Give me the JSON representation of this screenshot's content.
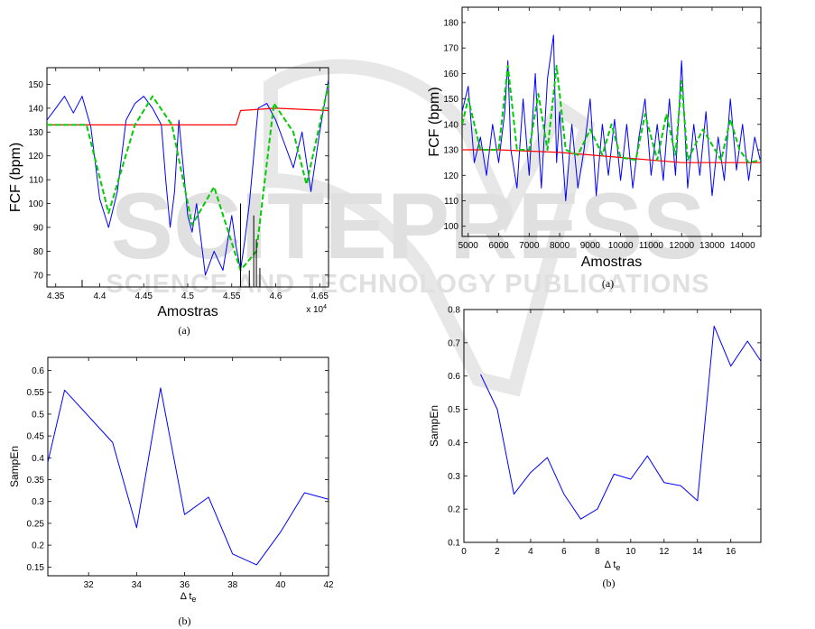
{
  "watermark": {
    "main": "SCITEPRESS",
    "sub": "SCIENCE AND TECHNOLOGY PUBLICATIONS"
  },
  "chart_data": [
    {
      "id": "top-left",
      "type": "line",
      "caption": "(a)",
      "xlabel": "Amostras",
      "ylabel": "FCF (bpm)",
      "x_exponent": "x 10",
      "x_exponent_power": "4",
      "xlim": [
        43.4,
        46.6
      ],
      "ylim": [
        65,
        157
      ],
      "xticks": [
        43.5,
        44,
        44.5,
        45,
        45.5,
        46,
        46.5
      ],
      "xtick_labels": [
        "4.35",
        "4.4",
        "4.45",
        "4.5",
        "4.55",
        "4.6",
        "4.65"
      ],
      "yticks": [
        70,
        80,
        90,
        100,
        110,
        120,
        130,
        140,
        150
      ],
      "ytick_labels": [
        "70",
        "80",
        "90",
        "100",
        "110",
        "120",
        "130",
        "140",
        "150"
      ],
      "colors": {
        "raw": "#0000ff",
        "baseline": "#ff0000",
        "trend": "#00cc00",
        "events": "#000000"
      },
      "series": [
        {
          "kind": "baseline",
          "x": [
            43.4,
            44.5,
            45.5,
            45.55,
            45.6,
            46.0,
            46.6
          ],
          "values": [
            133,
            133,
            133,
            133,
            139,
            140,
            139
          ]
        },
        {
          "kind": "trend",
          "x": [
            43.4,
            43.85,
            44.1,
            44.4,
            44.6,
            44.82,
            45.05,
            45.3,
            45.6,
            45.78,
            45.98,
            46.2,
            46.35,
            46.6
          ],
          "values": [
            133,
            133,
            96,
            133,
            145,
            133,
            91,
            107,
            72,
            80,
            142,
            130,
            108,
            150
          ]
        },
        {
          "kind": "raw",
          "x": [
            43.4,
            43.5,
            43.6,
            43.7,
            43.8,
            43.9,
            44.0,
            44.05,
            44.1,
            44.2,
            44.3,
            44.4,
            44.5,
            44.6,
            44.7,
            44.75,
            44.8,
            44.85,
            44.9,
            45.0,
            45.05,
            45.1,
            45.2,
            45.3,
            45.4,
            45.5,
            45.55,
            45.6,
            45.65,
            45.7,
            45.8,
            45.9,
            46.0,
            46.1,
            46.2,
            46.3,
            46.4,
            46.5,
            46.6
          ],
          "values": [
            135,
            140,
            145,
            138,
            145,
            132,
            102,
            96,
            90,
            105,
            135,
            142,
            145,
            140,
            133,
            110,
            90,
            105,
            135,
            95,
            88,
            100,
            70,
            80,
            72,
            95,
            82,
            72,
            85,
            100,
            140,
            142,
            135,
            125,
            115,
            130,
            105,
            130,
            152
          ]
        },
        {
          "kind": "events",
          "x": [
            43.8,
            45.6,
            45.7,
            45.75,
            45.78,
            45.82
          ],
          "values": [
            68,
            100,
            72,
            95,
            85,
            73
          ]
        }
      ]
    },
    {
      "id": "top-right",
      "type": "line",
      "caption": "(a)",
      "xlabel": "Amostras",
      "ylabel": "FCF (bpm)",
      "xlim": [
        4800,
        14600
      ],
      "ylim": [
        96,
        186
      ],
      "xticks": [
        5000,
        6000,
        7000,
        8000,
        9000,
        10000,
        11000,
        12000,
        13000,
        14000
      ],
      "xtick_labels": [
        "5000",
        "6000",
        "7000",
        "8000",
        "9000",
        "10000",
        "11000",
        "12000",
        "13000",
        "14000"
      ],
      "yticks": [
        100,
        110,
        120,
        130,
        140,
        150,
        160,
        170,
        180
      ],
      "ytick_labels": [
        "100",
        "110",
        "120",
        "130",
        "140",
        "150",
        "160",
        "170",
        "180"
      ],
      "colors": {
        "raw": "#0000ff",
        "baseline": "#ff0000",
        "trend": "#00cc00"
      },
      "series": [
        {
          "kind": "baseline",
          "x": [
            4800,
            6000,
            8000,
            10000,
            12000,
            14600
          ],
          "values": [
            130,
            130,
            129,
            127,
            125,
            125
          ]
        },
        {
          "kind": "trend",
          "x": [
            4800,
            5000,
            5400,
            6000,
            6300,
            6600,
            7000,
            7300,
            7600,
            7900,
            8200,
            8600,
            9000,
            9400,
            9700,
            10000,
            10500,
            10800,
            11200,
            11500,
            11800,
            12000,
            12200,
            12700,
            13300,
            13600,
            13900,
            14200,
            14600
          ],
          "values": [
            140,
            150,
            130,
            130,
            163,
            130,
            130,
            152,
            130,
            163,
            130,
            128,
            138,
            128,
            140,
            127,
            126,
            144,
            126,
            144,
            128,
            157,
            126,
            138,
            126,
            142,
            130,
            125,
            126
          ]
        },
        {
          "kind": "raw",
          "x": [
            4800,
            5000,
            5200,
            5400,
            5600,
            5800,
            6000,
            6200,
            6300,
            6400,
            6600,
            6800,
            7000,
            7200,
            7300,
            7400,
            7600,
            7800,
            7900,
            8000,
            8200,
            8400,
            8600,
            8800,
            9000,
            9200,
            9400,
            9600,
            9800,
            10000,
            10200,
            10400,
            10600,
            10800,
            11000,
            11200,
            11400,
            11600,
            11800,
            12000,
            12200,
            12400,
            12600,
            12800,
            13000,
            13200,
            13400,
            13600,
            13800,
            14000,
            14200,
            14400,
            14600
          ],
          "values": [
            145,
            155,
            125,
            135,
            120,
            140,
            125,
            145,
            165,
            130,
            115,
            150,
            120,
            160,
            135,
            115,
            158,
            175,
            125,
            145,
            110,
            140,
            115,
            130,
            150,
            112,
            140,
            120,
            142,
            118,
            140,
            115,
            135,
            150,
            120,
            140,
            118,
            150,
            120,
            165,
            115,
            140,
            120,
            145,
            112,
            135,
            118,
            150,
            122,
            140,
            118,
            135,
            125
          ]
        }
      ]
    },
    {
      "id": "bottom-left",
      "type": "line",
      "caption": "(b)",
      "xlabel": "Δ t",
      "xlabel_sub": "e",
      "ylabel": "SampEn",
      "xlim": [
        30.3,
        42
      ],
      "ylim": [
        0.13,
        0.63
      ],
      "xticks": [
        32,
        34,
        36,
        38,
        40,
        42
      ],
      "xtick_labels": [
        "32",
        "34",
        "36",
        "38",
        "40",
        "42"
      ],
      "yticks": [
        0.15,
        0.2,
        0.25,
        0.3,
        0.35,
        0.4,
        0.45,
        0.5,
        0.55,
        0.6
      ],
      "ytick_labels": [
        "0.15",
        "0.2",
        "0.25",
        "0.3",
        "0.35",
        "0.4",
        "0.45",
        "0.5",
        "0.55",
        "0.6"
      ],
      "colors": {
        "line": "#0000ff"
      },
      "series": [
        {
          "x": [
            30.3,
            31,
            33,
            34,
            35,
            36,
            37,
            38,
            39,
            40,
            41,
            42
          ],
          "values": [
            0.39,
            0.555,
            0.435,
            0.24,
            0.56,
            0.27,
            0.31,
            0.18,
            0.155,
            0.23,
            0.32,
            0.305
          ]
        }
      ]
    },
    {
      "id": "bottom-right",
      "type": "line",
      "caption": "(b)",
      "xlabel": "Δ t",
      "xlabel_sub": "e",
      "ylabel": "SampEn",
      "xlim": [
        0,
        17.8
      ],
      "ylim": [
        0.1,
        0.8
      ],
      "xticks": [
        0,
        2,
        4,
        6,
        8,
        10,
        12,
        14,
        16
      ],
      "xtick_labels": [
        "0",
        "2",
        "4",
        "6",
        "8",
        "10",
        "12",
        "14",
        "16"
      ],
      "yticks": [
        0.1,
        0.2,
        0.3,
        0.4,
        0.5,
        0.6,
        0.7,
        0.8
      ],
      "ytick_labels": [
        "0.1",
        "0.2",
        "0.3",
        "0.4",
        "0.5",
        "0.6",
        "0.7",
        "0.8"
      ],
      "colors": {
        "line": "#0000ff"
      },
      "series": [
        {
          "x": [
            1,
            2,
            3,
            4,
            5,
            6,
            7,
            8,
            9,
            10,
            11,
            12,
            13,
            14,
            15,
            16,
            17,
            17.8
          ],
          "values": [
            0.605,
            0.5,
            0.245,
            0.31,
            0.355,
            0.245,
            0.17,
            0.2,
            0.305,
            0.29,
            0.36,
            0.28,
            0.27,
            0.225,
            0.75,
            0.63,
            0.705,
            0.645
          ]
        }
      ]
    }
  ]
}
